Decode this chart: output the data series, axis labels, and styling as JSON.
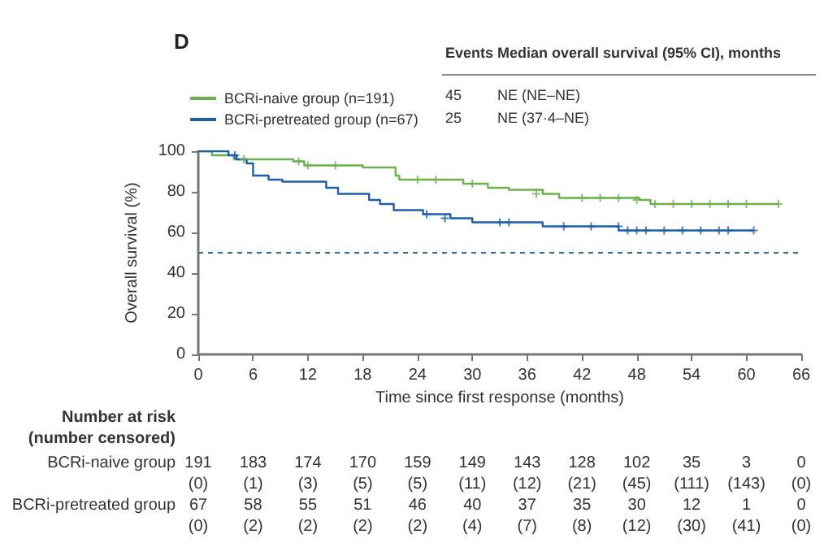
{
  "chart_data": {
    "type": "step",
    "title": "D",
    "xlabel": "Time since first response (months)",
    "ylabel": "Overall survival (%)",
    "legend": "top left",
    "grid": false,
    "xlim": [
      0,
      66
    ],
    "xticks": [
      0,
      6,
      12,
      18,
      24,
      30,
      36,
      42,
      48,
      54,
      60,
      66
    ],
    "ylim": [
      0,
      100
    ],
    "yticks": [
      0,
      20,
      40,
      60,
      80,
      100
    ],
    "ref_lines": [
      {
        "axis": "y",
        "value": 50,
        "color": "#2e6e9e",
        "line_style": "dashed"
      }
    ],
    "series": [
      {
        "name": "BCRi-naive group (n=191)",
        "color": "#6ab04c",
        "marker": "none",
        "x": [
          0,
          1.5,
          3.9,
          10.4,
          11.6,
          18,
          21.6,
          22,
          29,
          31.7,
          34,
          37.7,
          39.5,
          48.3,
          49.5,
          63.5
        ],
        "values": [
          100,
          98,
          96,
          95,
          93,
          92,
          88,
          86,
          84,
          82,
          81,
          79,
          77,
          76,
          74,
          74
        ]
      },
      {
        "name": "BCRi-pretreated group (n=67)",
        "color": "#1f5fa8",
        "marker": "none",
        "x": [
          0,
          3.3,
          4.2,
          5.3,
          6,
          7.7,
          9.2,
          14,
          15.3,
          18.7,
          19.9,
          21.4,
          24.6,
          27.6,
          30,
          37.7,
          46,
          60.8
        ],
        "values": [
          100,
          98,
          96,
          94,
          88,
          86,
          85,
          82,
          79,
          76,
          74,
          71,
          69,
          67,
          65,
          63,
          61,
          61
        ]
      },
      {
        "type": "scatter",
        "color": "#6ab04c",
        "marker": "cross",
        "x": [
          5,
          11,
          12,
          15,
          24,
          26,
          30,
          37,
          42,
          44,
          46,
          48,
          50,
          52,
          54,
          56,
          58,
          60,
          63.5
        ],
        "values": [
          96,
          95,
          93,
          93,
          86,
          86,
          84,
          79,
          77,
          77,
          77,
          76,
          74,
          74,
          74,
          74,
          74,
          74,
          74
        ]
      },
      {
        "type": "scatter",
        "color": "#1f5fa8",
        "marker": "cross",
        "x": [
          4,
          25,
          27,
          33,
          34,
          40,
          43,
          46,
          47,
          48,
          49,
          51,
          53,
          55,
          57,
          58,
          60.8
        ],
        "values": [
          98,
          69,
          67,
          65,
          65,
          63,
          63,
          63,
          61,
          61,
          61,
          61,
          61,
          61,
          61,
          61,
          61
        ]
      }
    ],
    "annotations": [
      "Events",
      "Median overall survival (95% CI), months",
      "45",
      "NE (NE–NE)",
      "25",
      "NE (37·4–NE)",
      "Number at risk",
      "(number censored)",
      "BCRi-naive group",
      "191",
      "183",
      "174",
      "170",
      "159",
      "149",
      "143",
      "128",
      "102",
      "35",
      "3",
      "0",
      "(0)",
      "(1)",
      "(3)",
      "(5)",
      "(5)",
      "(11)",
      "(12)",
      "(21)",
      "(45)",
      "(111)",
      "(143)",
      "(0)",
      "BCRi-pretreated group",
      "67",
      "58",
      "55",
      "51",
      "46",
      "40",
      "37",
      "35",
      "30",
      "12",
      "1",
      "0",
      "(0)",
      "(2)",
      "(2)",
      "(2)",
      "(2)",
      "(4)",
      "(7)",
      "(8)",
      "(12)",
      "(30)",
      "(41)",
      "(0)"
    ]
  }
}
